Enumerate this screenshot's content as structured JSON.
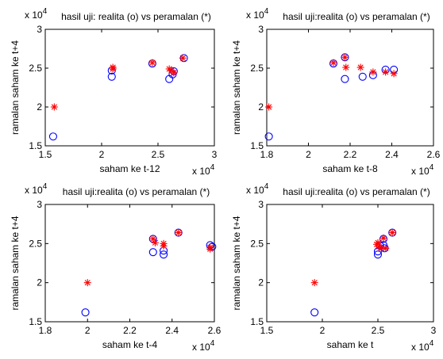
{
  "chart_data": [
    {
      "type": "scatter",
      "title": "hasil uji: realita (o) vs peramalan (*)",
      "xlabel": "saham ke t-12",
      "ylabel": "ramalan saham ke t+4",
      "x_exponent": "x 10",
      "x_exponent_power": "4",
      "y_exponent": "x 10",
      "y_exponent_power": "4",
      "xlim": [
        1.5,
        3
      ],
      "ylim": [
        1.5,
        3
      ],
      "xticks": [
        "1.5",
        "2",
        "2.5",
        "3"
      ],
      "yticks": [
        "1.5",
        "2",
        "2.5",
        "3"
      ],
      "series": [
        {
          "marker": "o",
          "color": "#0000ff",
          "points": [
            [
              1.57,
              1.62
            ],
            [
              2.09,
              2.39
            ],
            [
              2.09,
              2.47
            ],
            [
              2.45,
              2.56
            ],
            [
              2.6,
              2.36
            ],
            [
              2.63,
              2.42
            ],
            [
              2.64,
              2.46
            ],
            [
              2.73,
              2.63
            ]
          ]
        },
        {
          "marker": "*",
          "color": "#ff0000",
          "points": [
            [
              1.58,
              2.0
            ],
            [
              2.1,
              2.49
            ],
            [
              2.1,
              2.51
            ],
            [
              2.45,
              2.57
            ],
            [
              2.6,
              2.49
            ],
            [
              2.62,
              2.47
            ],
            [
              2.64,
              2.44
            ],
            [
              2.72,
              2.63
            ]
          ]
        }
      ]
    },
    {
      "type": "scatter",
      "title": "hasil uji:realita (o) vs peramalan (*)",
      "xlabel": "saham ke t-8",
      "ylabel": "ramalan saham ke t+4",
      "x_exponent": "x 10",
      "x_exponent_power": "4",
      "y_exponent": "x 10",
      "y_exponent_power": "4",
      "xlim": [
        1.8,
        2.6
      ],
      "ylim": [
        1.5,
        3
      ],
      "xticks": [
        "1.8",
        "2",
        "2.2",
        "2.4",
        "2.6"
      ],
      "yticks": [
        "1.5",
        "2",
        "2.5",
        "3"
      ],
      "series": [
        {
          "marker": "o",
          "color": "#0000ff",
          "points": [
            [
              1.81,
              1.62
            ],
            [
              2.12,
              2.56
            ],
            [
              2.175,
              2.64
            ],
            [
              2.175,
              2.36
            ],
            [
              2.26,
              2.39
            ],
            [
              2.31,
              2.41
            ],
            [
              2.37,
              2.48
            ],
            [
              2.41,
              2.48
            ]
          ]
        },
        {
          "marker": "*",
          "color": "#ff0000",
          "points": [
            [
              1.81,
              2.0
            ],
            [
              2.12,
              2.57
            ],
            [
              2.175,
              2.64
            ],
            [
              2.18,
              2.51
            ],
            [
              2.25,
              2.51
            ],
            [
              2.31,
              2.45
            ],
            [
              2.37,
              2.45
            ],
            [
              2.41,
              2.43
            ]
          ]
        }
      ]
    },
    {
      "type": "scatter",
      "title": "hasil uji:realita (o) vs peramalan (*)",
      "xlabel": "saham ke t-4",
      "ylabel": "ramalan saham ke t+4",
      "x_exponent": "x 10",
      "x_exponent_power": "4",
      "y_exponent": "x 10",
      "y_exponent_power": "4",
      "xlim": [
        1.8,
        2.6
      ],
      "ylim": [
        1.5,
        3
      ],
      "xticks": [
        "1.8",
        "2",
        "2.2",
        "2.4",
        "2.6"
      ],
      "yticks": [
        "1.5",
        "2",
        "2.5",
        "3"
      ],
      "series": [
        {
          "marker": "o",
          "color": "#0000ff",
          "points": [
            [
              1.99,
              1.62
            ],
            [
              2.31,
              2.56
            ],
            [
              2.31,
              2.39
            ],
            [
              2.36,
              2.36
            ],
            [
              2.36,
              2.41
            ],
            [
              2.43,
              2.64
            ],
            [
              2.58,
              2.48
            ],
            [
              2.59,
              2.46
            ]
          ]
        },
        {
          "marker": "*",
          "color": "#ff0000",
          "points": [
            [
              2.0,
              2.0
            ],
            [
              2.31,
              2.56
            ],
            [
              2.32,
              2.51
            ],
            [
              2.36,
              2.5
            ],
            [
              2.36,
              2.47
            ],
            [
              2.43,
              2.64
            ],
            [
              2.58,
              2.45
            ],
            [
              2.58,
              2.43
            ]
          ]
        }
      ]
    },
    {
      "type": "scatter",
      "title": "hasil uji:realita (o) vs peramalan (*)",
      "xlabel": "saham ke t",
      "ylabel": "ramalan saham ke t+4",
      "x_exponent": "x 10",
      "x_exponent_power": "4",
      "y_exponent": "x 10",
      "y_exponent_power": "4",
      "xlim": [
        1.5,
        3
      ],
      "ylim": [
        1.5,
        3
      ],
      "xticks": [
        "1.5",
        "2",
        "2.5",
        "3"
      ],
      "yticks": [
        "1.5",
        "2",
        "2.5",
        "3"
      ],
      "series": [
        {
          "marker": "o",
          "color": "#0000ff",
          "points": [
            [
              1.93,
              1.62
            ],
            [
              2.5,
              2.36
            ],
            [
              2.5,
              2.4
            ],
            [
              2.52,
              2.47
            ],
            [
              2.55,
              2.48
            ],
            [
              2.55,
              2.56
            ],
            [
              2.56,
              2.44
            ],
            [
              2.63,
              2.64
            ]
          ]
        },
        {
          "marker": "*",
          "color": "#ff0000",
          "points": [
            [
              1.93,
              2.0
            ],
            [
              2.49,
              2.49
            ],
            [
              2.5,
              2.51
            ],
            [
              2.51,
              2.46
            ],
            [
              2.53,
              2.44
            ],
            [
              2.55,
              2.57
            ],
            [
              2.57,
              2.44
            ],
            [
              2.63,
              2.64
            ]
          ]
        }
      ]
    }
  ]
}
